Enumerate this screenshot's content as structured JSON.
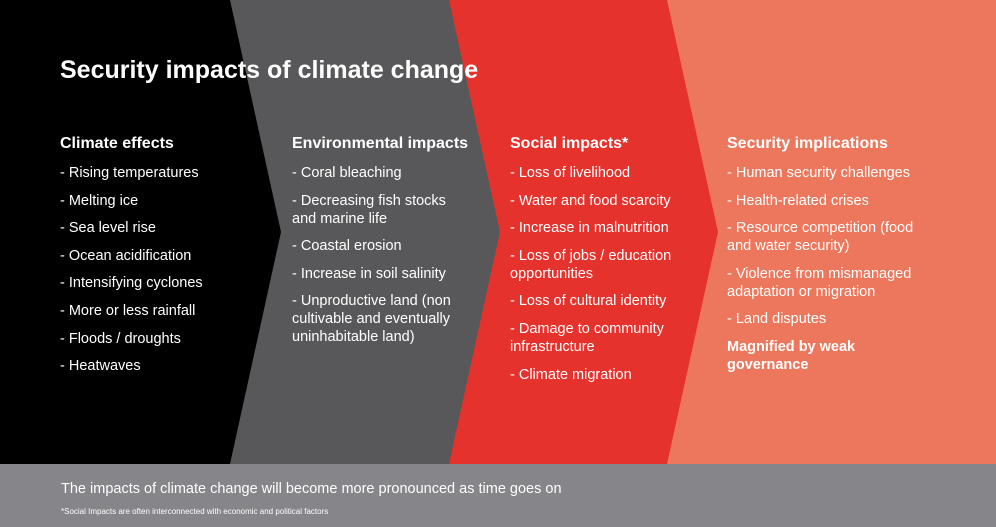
{
  "title": "Security impacts of climate change",
  "colors": {
    "col1": "#000000",
    "col2": "#58585a",
    "col3": "#e5322d",
    "col4": "#ed775c",
    "footer": "#85858a",
    "text": "#ffffff"
  },
  "columns": [
    {
      "heading": "Climate effects",
      "items": [
        "- Rising temperatures",
        "- Melting ice",
        "- Sea level rise",
        "- Ocean acidification",
        "- Intensifying cyclones",
        "- More or less rainfall",
        "- Floods / droughts",
        "- Heatwaves"
      ]
    },
    {
      "heading": "Environmental impacts",
      "items": [
        "- Coral bleaching",
        "- Decreasing fish stocks and marine life",
        "- Coastal erosion",
        "- Increase in soil salinity",
        "- Unproductive land (non cultivable and eventually uninhabitable land)"
      ]
    },
    {
      "heading": "Social impacts*",
      "items": [
        "- Loss of livelihood",
        "- Water and food scarcity",
        "- Increase in malnutrition",
        "- Loss of jobs / education opportunities",
        "- Loss of cultural identity",
        "- Damage to community infrastructure",
        "- Climate migration"
      ]
    },
    {
      "heading": "Security implications",
      "items": [
        "- Human security challenges",
        "- Health-related crises",
        "- Resource competition (food and water security)",
        "- Violence from mismanaged adaptation or migration",
        "- Land disputes"
      ],
      "emphasis": "Magnified by weak governance"
    }
  ],
  "footer": {
    "main": "The impacts of climate change will become more pronounced as time goes on",
    "note": "*Social Impacts are often interconnected with economic and political factors"
  }
}
